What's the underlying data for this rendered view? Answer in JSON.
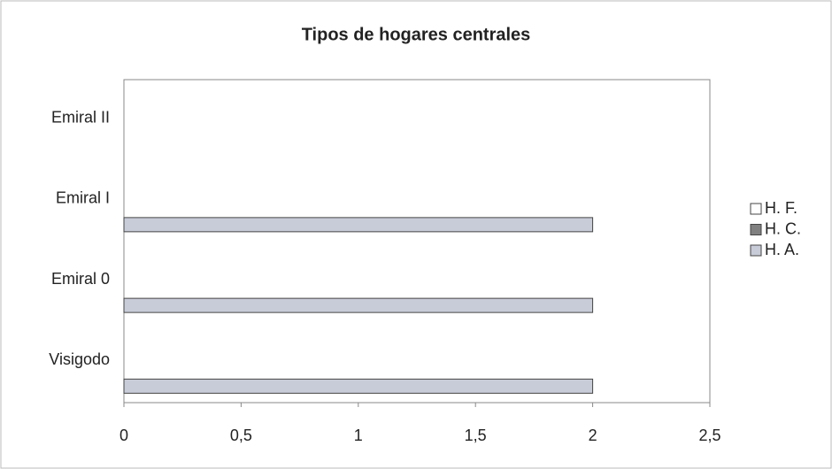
{
  "chart_data": {
    "type": "hbar",
    "title": "Tipos de hogares centrales",
    "categories": [
      "Visigodo",
      "Emiral 0",
      "Emiral I",
      "Emiral II"
    ],
    "series": [
      {
        "name": "H. F.",
        "color": "#ffffff",
        "values": [
          0,
          0,
          0,
          0
        ]
      },
      {
        "name": "H. C.",
        "color": "#808080",
        "values": [
          0,
          0,
          0,
          0
        ]
      },
      {
        "name": "H. A.",
        "color": "#c8ccd8",
        "values": [
          2,
          2,
          2,
          0
        ]
      }
    ],
    "xlim": [
      0,
      2.5
    ],
    "xticks": [
      0,
      {
        "value": 0.5,
        "label": "0,5"
      },
      1,
      {
        "value": 1.5,
        "label": "1,5"
      },
      2,
      {
        "value": 2.5,
        "label": "2,5"
      }
    ],
    "grid": false,
    "legend": "right"
  }
}
